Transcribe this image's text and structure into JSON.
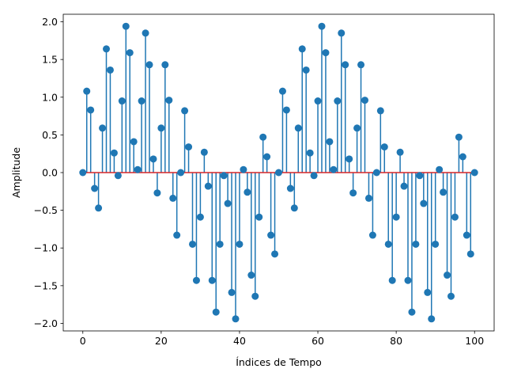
{
  "chart_data": {
    "type": "stem",
    "title": "",
    "xlabel": "Índices de Tempo",
    "ylabel": "Amplitude",
    "xlim": [
      -5,
      105
    ],
    "ylim": [
      -2.1,
      2.1
    ],
    "xticks": [
      0,
      20,
      40,
      60,
      80,
      100
    ],
    "xtick_labels": [
      "0",
      "20",
      "40",
      "60",
      "80",
      "100"
    ],
    "yticks": [
      -2.0,
      -1.5,
      -1.0,
      -0.5,
      0.0,
      0.5,
      1.0,
      1.5,
      2.0
    ],
    "ytick_labels": [
      "−2.0",
      "−1.5",
      "−1.0",
      "−0.5",
      "0.0",
      "0.5",
      "1.0",
      "1.5",
      "2.0"
    ],
    "grid": false,
    "baseline": 0,
    "colors": {
      "stem": "#1f77b4",
      "marker": "#1f77b4",
      "baseline": "#d62728"
    },
    "x": [
      0,
      1,
      2,
      3,
      4,
      5,
      6,
      7,
      8,
      9,
      10,
      11,
      12,
      13,
      14,
      15,
      16,
      17,
      18,
      19,
      20,
      21,
      22,
      23,
      24,
      25,
      26,
      27,
      28,
      29,
      30,
      31,
      32,
      33,
      34,
      35,
      36,
      37,
      38,
      39,
      40,
      41,
      42,
      43,
      44,
      45,
      46,
      47,
      48,
      49,
      50,
      51,
      52,
      53,
      54,
      55,
      56,
      57,
      58,
      59,
      60,
      61,
      62,
      63,
      64,
      65,
      66,
      67,
      68,
      69,
      70,
      71,
      72,
      73,
      74,
      75,
      76,
      77,
      78,
      79,
      80,
      81,
      82,
      83,
      84,
      85,
      86,
      87,
      88,
      89,
      90,
      91,
      92,
      93,
      94,
      95,
      96,
      97,
      98,
      99,
      100
    ],
    "values": [
      0.0,
      1.08,
      0.83,
      -0.21,
      -0.47,
      0.59,
      1.64,
      1.36,
      0.26,
      -0.04,
      0.95,
      1.94,
      1.59,
      0.41,
      0.04,
      0.95,
      1.85,
      1.43,
      0.18,
      -0.27,
      0.59,
      1.43,
      0.96,
      -0.34,
      -0.83,
      0.0,
      0.82,
      0.34,
      -0.95,
      -1.43,
      -0.59,
      0.27,
      -0.18,
      -1.43,
      -1.85,
      -0.95,
      -0.04,
      -0.41,
      -1.59,
      -1.94,
      -0.95,
      0.04,
      -0.26,
      -1.36,
      -1.64,
      -0.59,
      0.47,
      0.21,
      -0.83,
      -1.08,
      0.0,
      1.08,
      0.83,
      -0.21,
      -0.47,
      0.59,
      1.64,
      1.36,
      0.26,
      -0.04,
      0.95,
      1.94,
      1.59,
      0.41,
      0.04,
      0.95,
      1.85,
      1.43,
      0.18,
      -0.27,
      0.59,
      1.43,
      0.96,
      -0.34,
      -0.83,
      0.0,
      0.82,
      0.34,
      -0.95,
      -1.43,
      -0.59,
      0.27,
      -0.18,
      -1.43,
      -1.85,
      -0.95,
      -0.04,
      -0.41,
      -1.59,
      -1.94,
      -0.95,
      0.04,
      -0.26,
      -1.36,
      -1.64,
      -0.59,
      0.47,
      0.21,
      -0.83,
      -1.08,
      0.0
    ]
  }
}
